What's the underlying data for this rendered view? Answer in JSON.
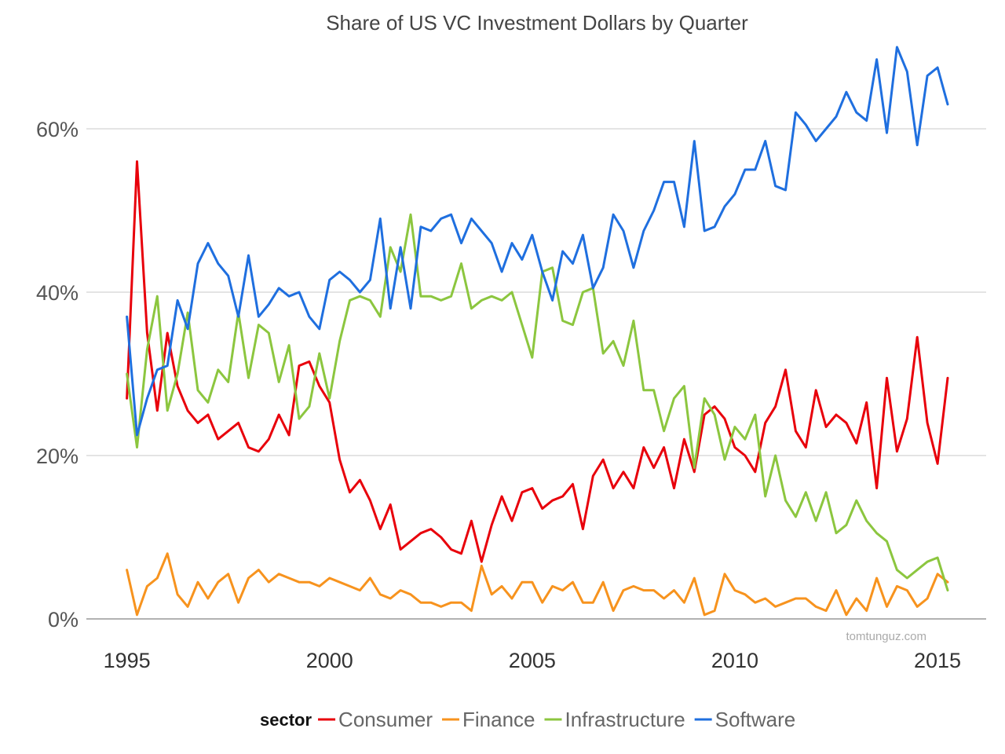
{
  "chart_data": {
    "type": "line",
    "title": "Share of US VC Investment Dollars by Quarter",
    "xlabel": "",
    "ylabel": "",
    "xlim": [
      1994.0,
      2016.2
    ],
    "ylim": [
      0,
      70
    ],
    "x_ticks": [
      1995,
      2000,
      2005,
      2010,
      2015
    ],
    "y_ticks": [
      0,
      20,
      40,
      60
    ],
    "y_tick_labels": [
      "0%",
      "20%",
      "40%",
      "60%"
    ],
    "grid": true,
    "legend_position": "bottom",
    "legend_title": "sector",
    "watermark": "tomtunguz.com",
    "x_start": 1995.0,
    "x_step": 0.25,
    "series": [
      {
        "name": "Consumer",
        "color": "#e8000b",
        "values": [
          27,
          56,
          35,
          25.5,
          35,
          28.5,
          25.5,
          24,
          25,
          22,
          23,
          24,
          21,
          20.5,
          22,
          25,
          22.5,
          31,
          31.5,
          28.5,
          26.5,
          19.5,
          15.5,
          17,
          14.5,
          11,
          14,
          8.5,
          9.5,
          10.5,
          11,
          10,
          8.5,
          8,
          12,
          7,
          11.5,
          15,
          12,
          15.5,
          16,
          13.5,
          14.5,
          15,
          16.5,
          11,
          17.5,
          19.5,
          16,
          18,
          16,
          21,
          18.5,
          21,
          16,
          22,
          18,
          25,
          26,
          24.5,
          21,
          20,
          18,
          24,
          26,
          30.5,
          23,
          21,
          28,
          23.5,
          25,
          24,
          21.5,
          26.5,
          16,
          29.5,
          20.5,
          24.5,
          34.5,
          24,
          19,
          29.5
        ]
      },
      {
        "name": "Finance",
        "color": "#f7931e",
        "values": [
          6,
          0.5,
          4,
          5,
          8,
          3,
          1.5,
          4.5,
          2.5,
          4.5,
          5.5,
          2,
          5,
          6,
          4.5,
          5.5,
          5,
          4.5,
          4.5,
          4,
          5,
          4.5,
          4,
          3.5,
          5,
          3,
          2.5,
          3.5,
          3,
          2,
          2,
          1.5,
          2,
          2,
          1,
          6.5,
          3,
          4,
          2.5,
          4.5,
          4.5,
          2,
          4,
          3.5,
          4.5,
          2,
          2,
          4.5,
          1,
          3.5,
          4,
          3.5,
          3.5,
          2.5,
          3.5,
          2,
          5,
          0.5,
          1,
          5.5,
          3.5,
          3,
          2,
          2.5,
          1.5,
          2,
          2.5,
          2.5,
          1.5,
          1,
          3.5,
          0.5,
          2.5,
          1,
          5,
          1.5,
          4,
          3.5,
          1.5,
          2.5,
          5.5,
          4.5
        ]
      },
      {
        "name": "Infrastructure",
        "color": "#8cc63f",
        "values": [
          30,
          21,
          33,
          39.5,
          25.5,
          30,
          37.5,
          28,
          26.5,
          30.5,
          29,
          37.5,
          29.5,
          36,
          35,
          29,
          33.5,
          24.5,
          26,
          32.5,
          27,
          34,
          39,
          39.5,
          39,
          37,
          45.5,
          42.5,
          49.5,
          39.5,
          39.5,
          39,
          39.5,
          43.5,
          38,
          39,
          39.5,
          39,
          40,
          36,
          32,
          42.5,
          43,
          36.5,
          36,
          40,
          40.5,
          32.5,
          34,
          31,
          36.5,
          28,
          28,
          23,
          27,
          28.5,
          18.5,
          27,
          25,
          19.5,
          23.5,
          22,
          25,
          15,
          20,
          14.5,
          12.5,
          15.5,
          12,
          15.5,
          10.5,
          11.5,
          14.5,
          12,
          10.5,
          9.5,
          6,
          5,
          6,
          7,
          7.5,
          3.5
        ]
      },
      {
        "name": "Software",
        "color": "#1f6fdf",
        "values": [
          37,
          22.5,
          27,
          30.5,
          31,
          39,
          35.5,
          43.5,
          46,
          43.5,
          42,
          37,
          44.5,
          37,
          38.5,
          40.5,
          39.5,
          40,
          37,
          35.5,
          41.5,
          42.5,
          41.5,
          40,
          41.5,
          49,
          38,
          45.5,
          38,
          48,
          47.5,
          49,
          49.5,
          46,
          49,
          47.5,
          46,
          42.5,
          46,
          44,
          47,
          42.5,
          39,
          45,
          43.5,
          47,
          40.5,
          43,
          49.5,
          47.5,
          43,
          47.5,
          50,
          53.5,
          53.5,
          48,
          58.5,
          47.5,
          48,
          50.5,
          52,
          55,
          55,
          58.5,
          53,
          52.5,
          62,
          60.5,
          58.5,
          60,
          61.5,
          64.5,
          62,
          61,
          68.5,
          59.5,
          70,
          67,
          58,
          66.5,
          67.5,
          63
        ]
      }
    ]
  }
}
